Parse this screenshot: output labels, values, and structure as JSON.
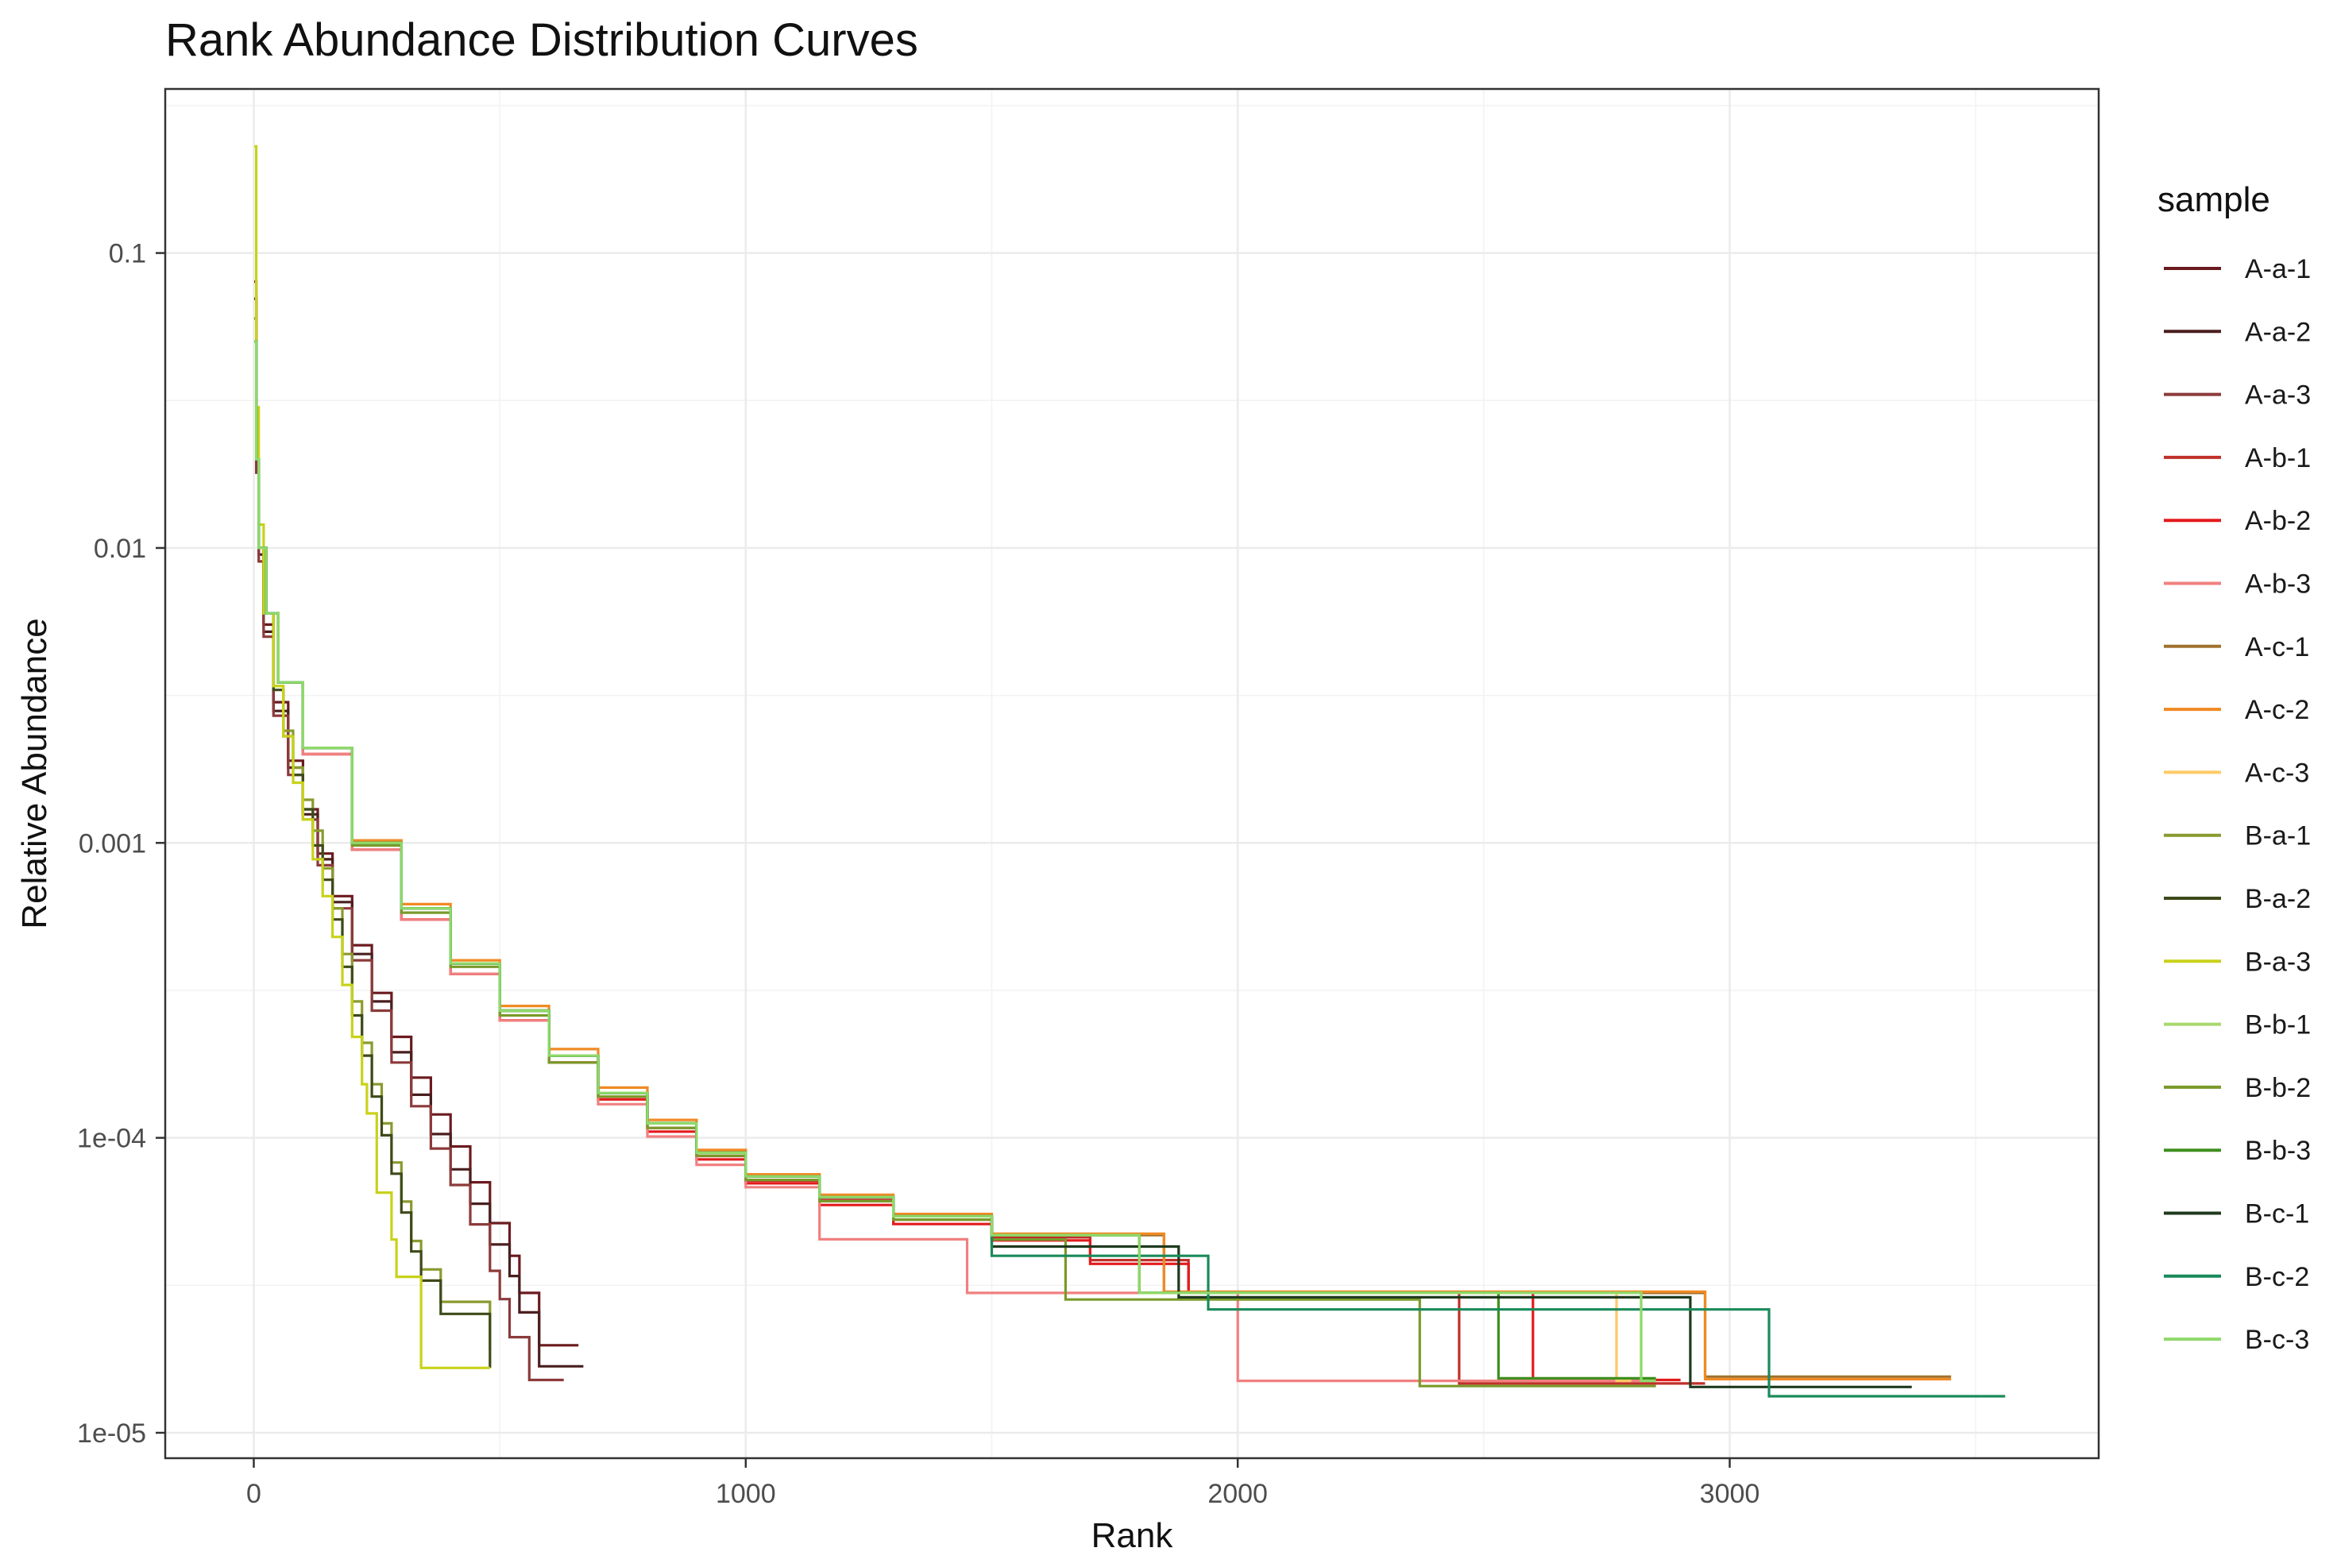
{
  "chart_data": {
    "type": "line",
    "title": "Rank Abundance Distribution Curves",
    "xlabel": "Rank",
    "ylabel": "Relative Abundance",
    "xlim": [
      -180,
      3750
    ],
    "ylim": [
      8.2e-06,
      0.36
    ],
    "y_scale": "log10",
    "x_ticks": [
      0,
      1000,
      2000,
      3000
    ],
    "x_tick_labels": [
      "0",
      "1000",
      "2000",
      "3000"
    ],
    "y_ticks": [
      1e-05,
      0.0001,
      0.001,
      0.01,
      0.1
    ],
    "y_tick_labels": [
      "1e-05",
      "1e-04",
      "0.001",
      "0.01",
      "0.1"
    ],
    "grid": true,
    "legend_title": "sample",
    "legend_position": "right",
    "series": [
      {
        "name": "A-a-1",
        "color": "#6b1a1f",
        "x": [
          1,
          5,
          10,
          20,
          40,
          70,
          100,
          130,
          160,
          200,
          240,
          280,
          320,
          360,
          400,
          440,
          480,
          520,
          540,
          580,
          660
        ],
        "y": [
          0.08,
          0.02,
          0.01,
          0.0055,
          0.003,
          0.0019,
          0.0013,
          0.00092,
          0.00066,
          0.00045,
          0.00031,
          0.00022,
          0.00016,
          0.00012,
          9.35e-05,
          7.07e-05,
          5.14e-05,
          3.98e-05,
          2.98e-05,
          1.98e-05,
          1.98e-05
        ]
      },
      {
        "name": "A-a-2",
        "color": "#4a1f1f",
        "x": [
          1,
          5,
          10,
          20,
          40,
          70,
          100,
          130,
          160,
          200,
          240,
          280,
          320,
          360,
          400,
          440,
          480,
          520,
          540,
          580,
          670
        ],
        "y": [
          0.07,
          0.02,
          0.0095,
          0.0052,
          0.0028,
          0.0018,
          0.00125,
          0.00088,
          0.00063,
          0.00042,
          0.00029,
          0.000195,
          0.00014,
          0.000103,
          7.82e-05,
          5.98e-05,
          4.35e-05,
          3.4e-05,
          2.56e-05,
          1.68e-05,
          1.68e-05
        ]
      },
      {
        "name": "A-a-3",
        "color": "#8c3a3a",
        "x": [
          1,
          5,
          10,
          20,
          40,
          70,
          100,
          130,
          160,
          200,
          240,
          280,
          320,
          360,
          400,
          440,
          480,
          500,
          520,
          560,
          630
        ],
        "y": [
          0.06,
          0.018,
          0.009,
          0.005,
          0.0027,
          0.0017,
          0.0012,
          0.00084,
          0.0006,
          0.0004,
          0.00027,
          0.00018,
          0.000128,
          9.2e-05,
          6.92e-05,
          5.09e-05,
          3.54e-05,
          2.84e-05,
          2.11e-05,
          1.51e-05,
          1.51e-05
        ]
      },
      {
        "name": "A-b-1",
        "color": "#c0302a",
        "x": [
          1,
          5,
          10,
          25,
          50,
          100,
          200,
          300,
          400,
          500,
          600,
          700,
          800,
          900,
          1000,
          1150,
          1300,
          1500,
          1700,
          1900,
          2200,
          2450,
          2450,
          2600,
          2950
        ],
        "y": [
          0.05,
          0.02,
          0.01,
          0.006,
          0.0035,
          0.002,
          0.00095,
          0.00055,
          0.00036,
          0.00025,
          0.00018,
          0.000135,
          0.000108,
          8.68e-05,
          7.16e-05,
          6.16e-05,
          5.28e-05,
          4.6e-05,
          3.85e-05,
          2.98e-05,
          2.98e-05,
          2.98e-05,
          1.47e-05,
          1.47e-05,
          1.47e-05
        ]
      },
      {
        "name": "A-b-2",
        "color": "#e31a1c",
        "x": [
          1,
          5,
          10,
          25,
          50,
          100,
          200,
          300,
          400,
          500,
          600,
          700,
          800,
          900,
          1000,
          1150,
          1300,
          1500,
          1700,
          1900,
          2200,
          2600,
          2600,
          2900
        ],
        "y": [
          0.05,
          0.02,
          0.01,
          0.006,
          0.0035,
          0.002,
          0.00095,
          0.00055,
          0.00036,
          0.00025,
          0.00018,
          0.000135,
          0.000105,
          8.45e-05,
          7.01e-05,
          5.92e-05,
          5.1e-05,
          4.49e-05,
          3.74e-05,
          2.98e-05,
          2.98e-05,
          2.98e-05,
          1.51e-05,
          1.51e-05
        ]
      },
      {
        "name": "A-b-3",
        "color": "#f08080",
        "x": [
          1,
          5,
          10,
          25,
          50,
          100,
          200,
          300,
          400,
          500,
          600,
          700,
          800,
          900,
          1000,
          1150,
          1150,
          1450,
          1450,
          2000,
          2000,
          2850
        ],
        "y": [
          0.05,
          0.02,
          0.01,
          0.006,
          0.0035,
          0.002,
          0.00095,
          0.00055,
          0.00036,
          0.00025,
          0.00018,
          0.00013,
          0.000101,
          8.1e-05,
          6.8e-05,
          6.8e-05,
          4.53e-05,
          4.53e-05,
          2.98e-05,
          2.98e-05,
          1.5e-05,
          1.5e-05
        ]
      },
      {
        "name": "A-c-1",
        "color": "#a0722e",
        "x": [
          1,
          5,
          10,
          25,
          50,
          100,
          200,
          300,
          400,
          500,
          600,
          700,
          800,
          900,
          1000,
          1150,
          1300,
          1500,
          1850,
          1850,
          2950,
          2950,
          3450
        ],
        "y": [
          0.05,
          0.02,
          0.01,
          0.006,
          0.0035,
          0.0021,
          0.001,
          0.0006,
          0.00039,
          0.00027,
          0.00019,
          0.000142,
          0.000112,
          8.9e-05,
          7.4e-05,
          6.3e-05,
          5.42e-05,
          4.68e-05,
          4.68e-05,
          2.98e-05,
          2.98e-05,
          1.55e-05,
          1.55e-05
        ]
      },
      {
        "name": "A-c-2",
        "color": "#f08a24",
        "x": [
          1,
          5,
          10,
          25,
          50,
          100,
          200,
          300,
          400,
          500,
          600,
          700,
          800,
          900,
          1000,
          1150,
          1300,
          1500,
          1850,
          1850,
          2950,
          2950,
          3450
        ],
        "y": [
          0.05,
          0.02,
          0.01,
          0.006,
          0.0035,
          0.0021,
          0.00102,
          0.00062,
          0.0004,
          0.00028,
          0.0002,
          0.000148,
          0.000115,
          9.1e-05,
          7.52e-05,
          6.41e-05,
          5.52e-05,
          4.73e-05,
          4.73e-05,
          3.01e-05,
          3.01e-05,
          1.52e-05,
          1.52e-05
        ]
      },
      {
        "name": "A-c-3",
        "color": "#ffc966",
        "x": [
          1,
          5,
          10,
          25,
          50,
          100,
          200,
          300,
          400,
          500,
          600,
          700,
          800,
          900,
          1000,
          1150,
          1300,
          1500,
          1800,
          1800,
          2770,
          2770,
          2800
        ],
        "y": [
          0.05,
          0.02,
          0.01,
          0.006,
          0.0035,
          0.0021,
          0.001,
          0.0006,
          0.00039,
          0.00027,
          0.00019,
          0.000142,
          0.000112,
          8.9e-05,
          7.4e-05,
          6.3e-05,
          5.42e-05,
          4.68e-05,
          4.68e-05,
          2.98e-05,
          2.98e-05,
          1.5e-05,
          1.5e-05
        ]
      },
      {
        "name": "B-a-1",
        "color": "#8a9a2e",
        "x": [
          1,
          5,
          10,
          20,
          40,
          60,
          80,
          100,
          120,
          140,
          160,
          180,
          200,
          220,
          240,
          260,
          280,
          300,
          320,
          340,
          380,
          480
        ],
        "y": [
          0.06,
          0.02,
          0.01,
          0.006,
          0.0034,
          0.0024,
          0.0018,
          0.0014,
          0.0011,
          0.00082,
          0.0006,
          0.00042,
          0.00029,
          0.00021,
          0.000152,
          0.000112,
          8.25e-05,
          6.08e-05,
          4.47e-05,
          3.58e-05,
          2.78e-05,
          1.9e-05
        ]
      },
      {
        "name": "B-a-2",
        "color": "#3d4a1a",
        "x": [
          1,
          5,
          10,
          20,
          40,
          60,
          80,
          100,
          120,
          140,
          160,
          180,
          200,
          220,
          240,
          260,
          280,
          300,
          320,
          340,
          380,
          480
        ],
        "y": [
          0.05,
          0.02,
          0.01,
          0.006,
          0.0033,
          0.0023,
          0.0017,
          0.0013,
          0.00098,
          0.00075,
          0.00055,
          0.00038,
          0.00026,
          0.00019,
          0.000138,
          0.000102,
          7.56e-05,
          5.58e-05,
          4.12e-05,
          3.28e-05,
          2.53e-05,
          1.66e-05
        ]
      },
      {
        "name": "B-a-3",
        "color": "#c8d21a",
        "x": [
          1,
          5,
          10,
          20,
          40,
          60,
          80,
          100,
          120,
          140,
          160,
          180,
          200,
          220,
          230,
          250,
          280,
          290,
          330,
          340,
          480
        ],
        "y": [
          0.23,
          0.03,
          0.012,
          0.006,
          0.0034,
          0.0023,
          0.0016,
          0.0012,
          0.00088,
          0.00066,
          0.00048,
          0.00033,
          0.00022,
          0.000152,
          0.000121,
          6.52e-05,
          4.52e-05,
          3.38e-05,
          3.38e-05,
          1.66e-05,
          1.66e-05
        ]
      },
      {
        "name": "B-b-1",
        "color": "#a8d86e",
        "x": [
          1,
          5,
          10,
          25,
          50,
          100,
          200,
          300,
          400,
          500,
          600,
          700,
          800,
          900,
          1000,
          1150,
          1300,
          1500,
          1800,
          1800,
          2820,
          2820,
          2830
        ],
        "y": [
          0.05,
          0.02,
          0.01,
          0.006,
          0.0035,
          0.0021,
          0.001,
          0.0006,
          0.00039,
          0.00027,
          0.00019,
          0.000142,
          0.000112,
          8.9e-05,
          7.4e-05,
          6.3e-05,
          5.42e-05,
          4.68e-05,
          4.68e-05,
          2.98e-05,
          2.98e-05,
          1.5e-05,
          1.5e-05
        ]
      },
      {
        "name": "B-b-2",
        "color": "#7a9a2a",
        "x": [
          1,
          5,
          10,
          25,
          50,
          100,
          200,
          300,
          400,
          500,
          600,
          700,
          800,
          900,
          1000,
          1150,
          1300,
          1500,
          1650,
          1650,
          2370,
          2370,
          2850
        ],
        "y": [
          0.05,
          0.02,
          0.01,
          0.006,
          0.0035,
          0.0021,
          0.00098,
          0.00058,
          0.00038,
          0.00026,
          0.00018,
          0.000138,
          0.000108,
          8.7e-05,
          7.2e-05,
          6.1e-05,
          5.28e-05,
          4.52e-05,
          4.52e-05,
          2.83e-05,
          2.83e-05,
          1.44e-05,
          1.44e-05
        ]
      },
      {
        "name": "B-b-3",
        "color": "#3f8f1f",
        "x": [
          1,
          5,
          10,
          25,
          50,
          100,
          200,
          300,
          400,
          500,
          600,
          700,
          800,
          900,
          1000,
          1150,
          1300,
          1500,
          1800,
          1800,
          2530,
          2530,
          2850
        ],
        "y": [
          0.05,
          0.02,
          0.01,
          0.006,
          0.0035,
          0.0021,
          0.001,
          0.0006,
          0.00039,
          0.00027,
          0.00019,
          0.000142,
          0.000112,
          8.9e-05,
          7.4e-05,
          6.3e-05,
          5.42e-05,
          4.68e-05,
          4.68e-05,
          2.98e-05,
          2.98e-05,
          1.53e-05,
          1.53e-05
        ]
      },
      {
        "name": "B-c-1",
        "color": "#1f3a1f",
        "x": [
          1,
          5,
          10,
          25,
          50,
          100,
          200,
          300,
          400,
          500,
          600,
          700,
          800,
          900,
          1000,
          1150,
          1300,
          1500,
          1880,
          1880,
          2920,
          2920,
          3370
        ],
        "y": [
          0.05,
          0.02,
          0.01,
          0.006,
          0.0035,
          0.0021,
          0.001,
          0.0006,
          0.00039,
          0.00027,
          0.00019,
          0.000142,
          0.000112,
          8.9e-05,
          7.4e-05,
          6.3e-05,
          5.42e-05,
          4.28e-05,
          4.28e-05,
          2.88e-05,
          2.88e-05,
          1.43e-05,
          1.43e-05
        ]
      },
      {
        "name": "B-c-2",
        "color": "#1a8a5a",
        "x": [
          1,
          5,
          10,
          25,
          50,
          100,
          200,
          300,
          400,
          500,
          600,
          700,
          800,
          900,
          1000,
          1150,
          1300,
          1500,
          1940,
          1940,
          3080,
          3080,
          3560
        ],
        "y": [
          0.05,
          0.02,
          0.01,
          0.006,
          0.0035,
          0.0021,
          0.001,
          0.0006,
          0.00039,
          0.00027,
          0.00019,
          0.000142,
          0.000112,
          8.9e-05,
          7.4e-05,
          6.3e-05,
          5.42e-05,
          3.98e-05,
          3.98e-05,
          2.62e-05,
          2.62e-05,
          1.33e-05,
          1.33e-05
        ]
      },
      {
        "name": "B-c-3",
        "color": "#8fd96a",
        "x": [
          1,
          5,
          10,
          25,
          50,
          100,
          200,
          300,
          400,
          500,
          600,
          700,
          800,
          900,
          1000,
          1150,
          1300,
          1500,
          1800,
          1800,
          2820,
          2820,
          2850
        ],
        "y": [
          0.05,
          0.02,
          0.01,
          0.006,
          0.0035,
          0.0021,
          0.001,
          0.0006,
          0.00039,
          0.00027,
          0.00019,
          0.000142,
          0.000112,
          8.9e-05,
          7.4e-05,
          6.3e-05,
          5.42e-05,
          4.68e-05,
          4.68e-05,
          2.98e-05,
          2.98e-05,
          1.5e-05,
          1.5e-05
        ]
      }
    ]
  }
}
